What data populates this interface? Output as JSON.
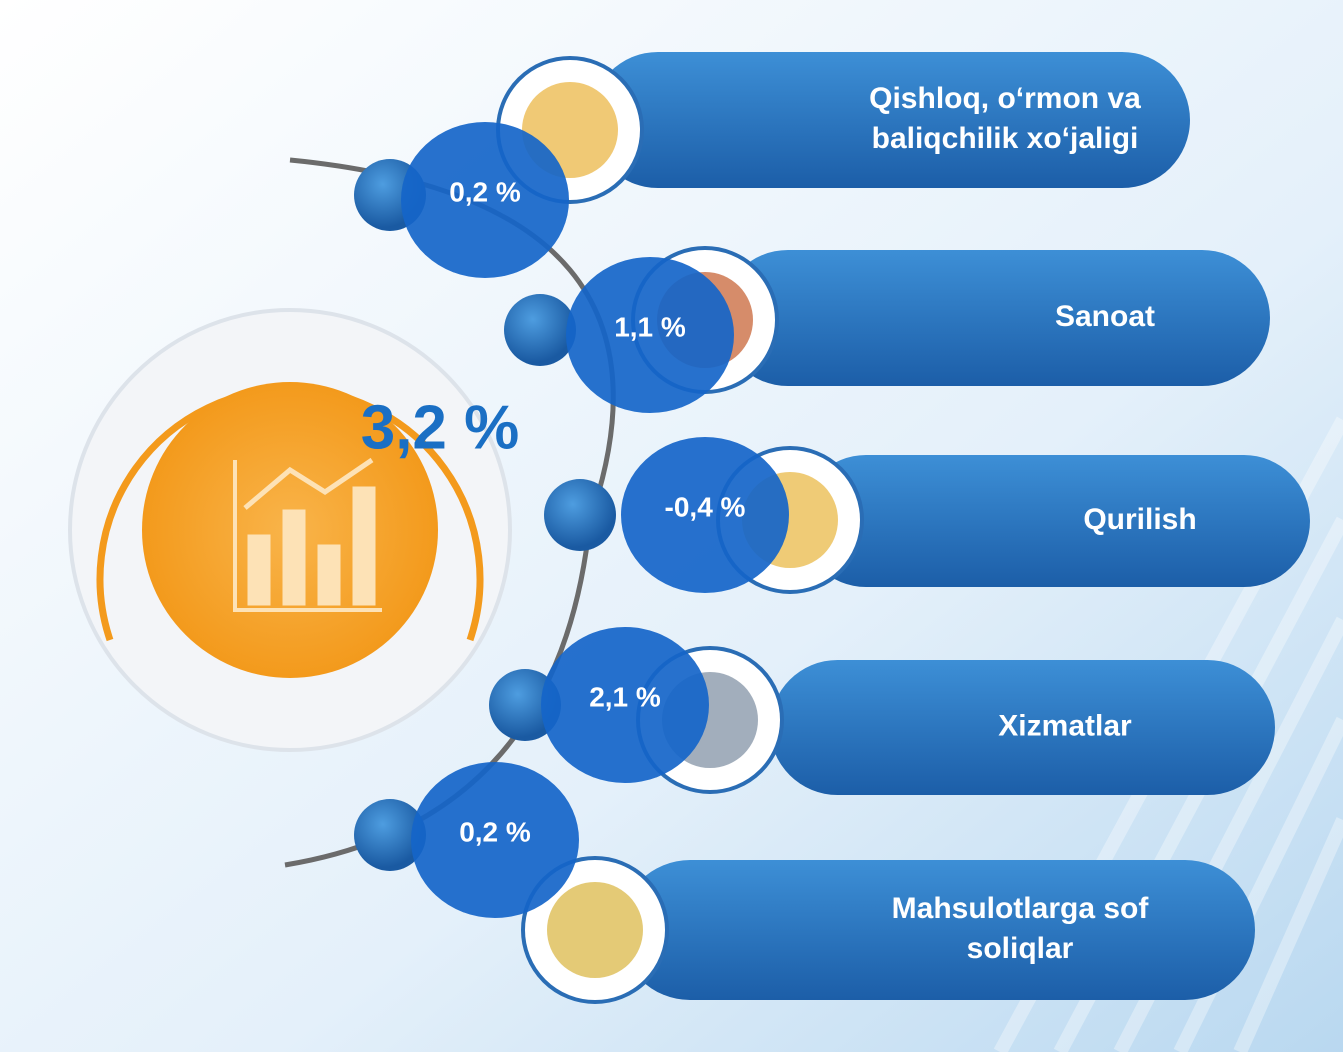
{
  "total": "3,2 %",
  "items": [
    {
      "label": [
        "Qishloq, o‘rmon va",
        "baliqchilik xo‘jaligi"
      ],
      "value": "0,2 %"
    },
    {
      "label": [
        "Sanoat"
      ],
      "value": "1,1 %"
    },
    {
      "label": [
        "Qurilish"
      ],
      "value": "-0,4 %"
    },
    {
      "label": [
        "Xizmatlar"
      ],
      "value": "2,1 %"
    },
    {
      "label": [
        "Mahsulotlarga sof",
        "soliqlar"
      ],
      "value": "0,2 %"
    }
  ]
}
